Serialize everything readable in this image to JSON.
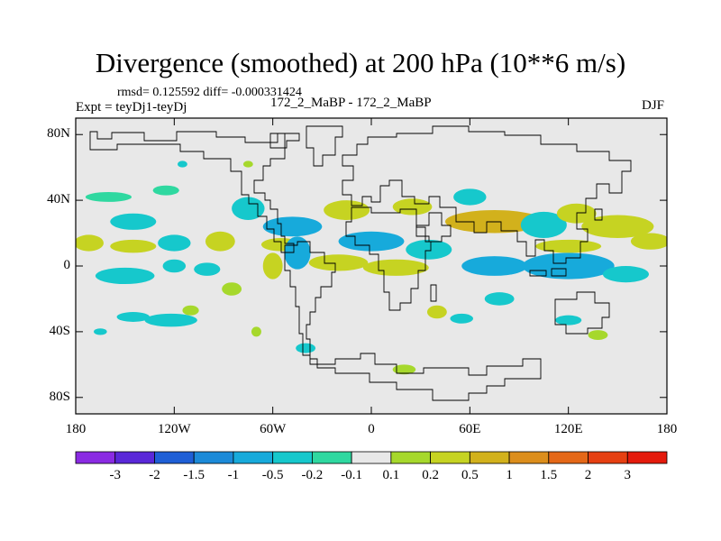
{
  "chart_data": {
    "type": "heatmap",
    "title": "Divergence (smoothed) at 200 hPa (10**6 m/s)",
    "stats_text": "rmsd= 0.125592 diff= -0.000331424",
    "experiment_text": "Expt = teyDj1-teyDj",
    "case_text": "172_2_MaBP - 172_2_MaBP",
    "season": "DJF",
    "x_range": [
      -180,
      180
    ],
    "y_range": [
      -90,
      90
    ],
    "x_ticks": [
      {
        "value": -180,
        "label": "180"
      },
      {
        "value": -120,
        "label": "120W"
      },
      {
        "value": -60,
        "label": "60W"
      },
      {
        "value": 0,
        "label": "0"
      },
      {
        "value": 60,
        "label": "60E"
      },
      {
        "value": 120,
        "label": "120E"
      },
      {
        "value": 180,
        "label": "180"
      }
    ],
    "y_ticks": [
      {
        "value": 80,
        "label": "80N"
      },
      {
        "value": 40,
        "label": "40N"
      },
      {
        "value": 0,
        "label": "0"
      },
      {
        "value": -40,
        "label": "40S"
      },
      {
        "value": -80,
        "label": "80S"
      }
    ],
    "colorbar": {
      "colors": [
        "#8a2be2",
        "#5a28d8",
        "#1f5fd6",
        "#1c8ad8",
        "#17aadb",
        "#16c8cc",
        "#2fd8a0",
        "#e8e8e8",
        "#a6d82c",
        "#c6d322",
        "#d2b11c",
        "#dc8e1c",
        "#e46818",
        "#e64012",
        "#e41a0c"
      ],
      "labels": [
        "-3",
        "-2",
        "-1.5",
        "-1",
        "-0.5",
        "-0.2",
        "-0.1",
        "0.1",
        "0.2",
        "0.5",
        "1",
        "1.5",
        "2",
        "3"
      ]
    },
    "features": [
      {
        "lon": -160,
        "lat": 42,
        "rx": 14,
        "ry": 3,
        "value": -0.15
      },
      {
        "lon": -125,
        "lat": 46,
        "rx": 8,
        "ry": 3,
        "value": -0.15
      },
      {
        "lon": -145,
        "lat": 27,
        "rx": 14,
        "ry": 5,
        "value": -0.3
      },
      {
        "lon": -172,
        "lat": 14,
        "rx": 9,
        "ry": 5,
        "value": 0.3
      },
      {
        "lon": -145,
        "lat": 12,
        "rx": 14,
        "ry": 4,
        "value": 0.3
      },
      {
        "lon": -120,
        "lat": 14,
        "rx": 10,
        "ry": 5,
        "value": -0.3
      },
      {
        "lon": -92,
        "lat": 15,
        "rx": 9,
        "ry": 6,
        "value": 0.3
      },
      {
        "lon": -75,
        "lat": 35,
        "rx": 10,
        "ry": 7,
        "value": -0.3
      },
      {
        "lon": -48,
        "lat": 24,
        "rx": 18,
        "ry": 6,
        "value": -0.5
      },
      {
        "lon": -55,
        "lat": 13,
        "rx": 12,
        "ry": 4,
        "value": 0.3
      },
      {
        "lon": -150,
        "lat": -6,
        "rx": 18,
        "ry": 5,
        "value": -0.3
      },
      {
        "lon": -120,
        "lat": 0,
        "rx": 7,
        "ry": 4,
        "value": -0.2
      },
      {
        "lon": -100,
        "lat": -2,
        "rx": 8,
        "ry": 4,
        "value": -0.2
      },
      {
        "lon": -45,
        "lat": 8,
        "rx": 8,
        "ry": 10,
        "value": -0.5
      },
      {
        "lon": -60,
        "lat": 0,
        "rx": 6,
        "ry": 8,
        "value": 0.3
      },
      {
        "lon": -20,
        "lat": 2,
        "rx": 18,
        "ry": 5,
        "value": 0.5
      },
      {
        "lon": 15,
        "lat": -1,
        "rx": 20,
        "ry": 5,
        "value": 0.4
      },
      {
        "lon": 0,
        "lat": 15,
        "rx": 20,
        "ry": 6,
        "value": -0.5
      },
      {
        "lon": 35,
        "lat": 10,
        "rx": 14,
        "ry": 6,
        "value": -0.4
      },
      {
        "lon": -15,
        "lat": 34,
        "rx": 14,
        "ry": 6,
        "value": 0.3
      },
      {
        "lon": 25,
        "lat": 36,
        "rx": 12,
        "ry": 5,
        "value": 0.3
      },
      {
        "lon": 75,
        "lat": 27,
        "rx": 30,
        "ry": 7,
        "value": 0.6
      },
      {
        "lon": 60,
        "lat": 42,
        "rx": 10,
        "ry": 5,
        "value": -0.2
      },
      {
        "lon": 105,
        "lat": 25,
        "rx": 14,
        "ry": 8,
        "value": -0.4
      },
      {
        "lon": 125,
        "lat": 32,
        "rx": 12,
        "ry": 6,
        "value": 0.4
      },
      {
        "lon": 150,
        "lat": 24,
        "rx": 22,
        "ry": 7,
        "value": 0.5
      },
      {
        "lon": 170,
        "lat": 15,
        "rx": 12,
        "ry": 5,
        "value": 0.3
      },
      {
        "lon": 75,
        "lat": 0,
        "rx": 20,
        "ry": 6,
        "value": -0.5
      },
      {
        "lon": 120,
        "lat": 0,
        "rx": 28,
        "ry": 8,
        "value": -0.5
      },
      {
        "lon": 155,
        "lat": -5,
        "rx": 14,
        "ry": 5,
        "value": -0.3
      },
      {
        "lon": 120,
        "lat": 12,
        "rx": 20,
        "ry": 4,
        "value": 0.3
      },
      {
        "lon": 40,
        "lat": -28,
        "rx": 6,
        "ry": 4,
        "value": 0.3
      },
      {
        "lon": 55,
        "lat": -32,
        "rx": 7,
        "ry": 3,
        "value": -0.2
      },
      {
        "lon": 78,
        "lat": -20,
        "rx": 9,
        "ry": 4,
        "value": -0.2
      },
      {
        "lon": 120,
        "lat": -33,
        "rx": 8,
        "ry": 3,
        "value": -0.2
      },
      {
        "lon": 138,
        "lat": -42,
        "rx": 6,
        "ry": 3,
        "value": 0.2
      },
      {
        "lon": -85,
        "lat": -14,
        "rx": 6,
        "ry": 4,
        "value": 0.2
      },
      {
        "lon": -110,
        "lat": -27,
        "rx": 5,
        "ry": 3,
        "value": 0.2
      },
      {
        "lon": -122,
        "lat": -33,
        "rx": 16,
        "ry": 4,
        "value": -0.2
      },
      {
        "lon": -145,
        "lat": -31,
        "rx": 10,
        "ry": 3,
        "value": -0.2
      },
      {
        "lon": -40,
        "lat": -50,
        "rx": 6,
        "ry": 3,
        "value": -0.2
      },
      {
        "lon": 20,
        "lat": -63,
        "rx": 7,
        "ry": 3,
        "value": 0.2
      },
      {
        "lon": -165,
        "lat": -40,
        "rx": 4,
        "ry": 2,
        "value": -0.2
      },
      {
        "lon": -70,
        "lat": -40,
        "rx": 3,
        "ry": 3,
        "value": 0.2
      },
      {
        "lon": -75,
        "lat": 62,
        "rx": 3,
        "ry": 2,
        "value": 0.2
      },
      {
        "lon": -115,
        "lat": 62,
        "rx": 3,
        "ry": 2,
        "value": -0.2
      }
    ]
  }
}
